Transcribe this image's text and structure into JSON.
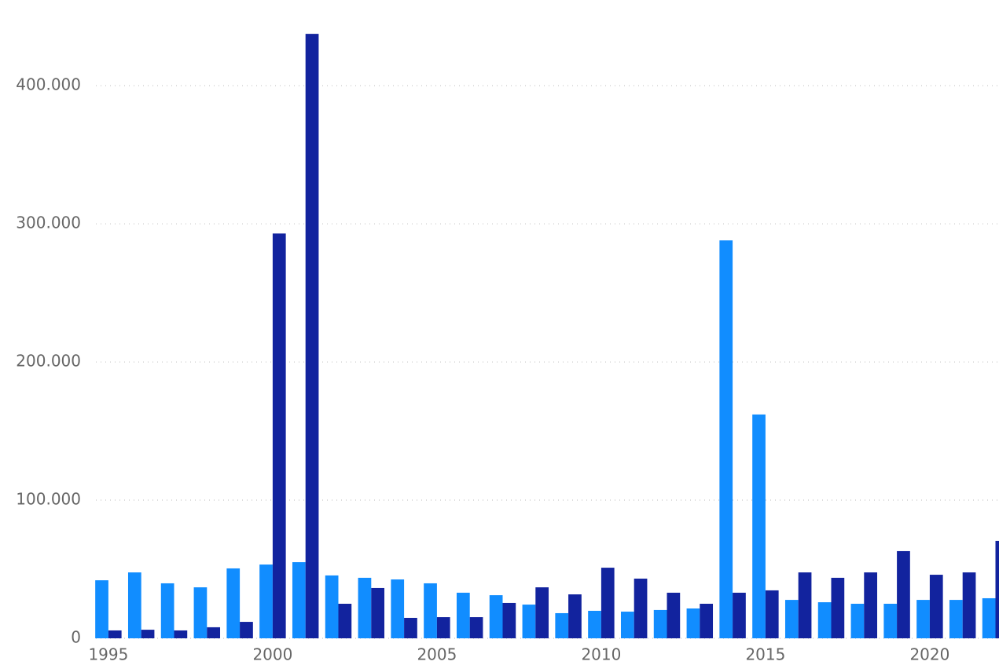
{
  "chart_data": {
    "type": "bar",
    "categories": [
      "1995",
      null,
      null,
      null,
      null,
      "2000",
      null,
      null,
      null,
      null,
      "2005",
      null,
      null,
      null,
      null,
      "2010",
      null,
      null,
      null,
      null,
      "2015",
      null,
      null,
      null,
      null,
      "2020",
      null,
      null
    ],
    "series": [
      {
        "color": "#118dff",
        "values": [
          42000,
          47700,
          39800,
          36900,
          50600,
          53400,
          55100,
          45500,
          43800,
          42600,
          39800,
          33000,
          31200,
          24400,
          18200,
          19900,
          19300,
          20500,
          21600,
          288000,
          162000,
          27800,
          26100,
          25000,
          25000,
          27800,
          27800,
          29000
        ]
      },
      {
        "color": "#12239e",
        "values": [
          5700,
          6200,
          5700,
          8000,
          11900,
          293000,
          437500,
          25000,
          36400,
          14800,
          15300,
          15300,
          25600,
          36900,
          31800,
          51100,
          43200,
          33000,
          25000,
          33000,
          34700,
          47700,
          43800,
          47700,
          63100,
          46000,
          47700,
          70500
        ]
      }
    ],
    "ylim": [
      0,
      462000
    ],
    "yticks": [
      0,
      {
        "value": 100000,
        "label": "100.000"
      },
      {
        "value": 200000,
        "label": "200.000"
      },
      {
        "value": 300000,
        "label": "300.000"
      },
      {
        "value": 400000,
        "label": "400.000"
      }
    ],
    "grid": true
  }
}
